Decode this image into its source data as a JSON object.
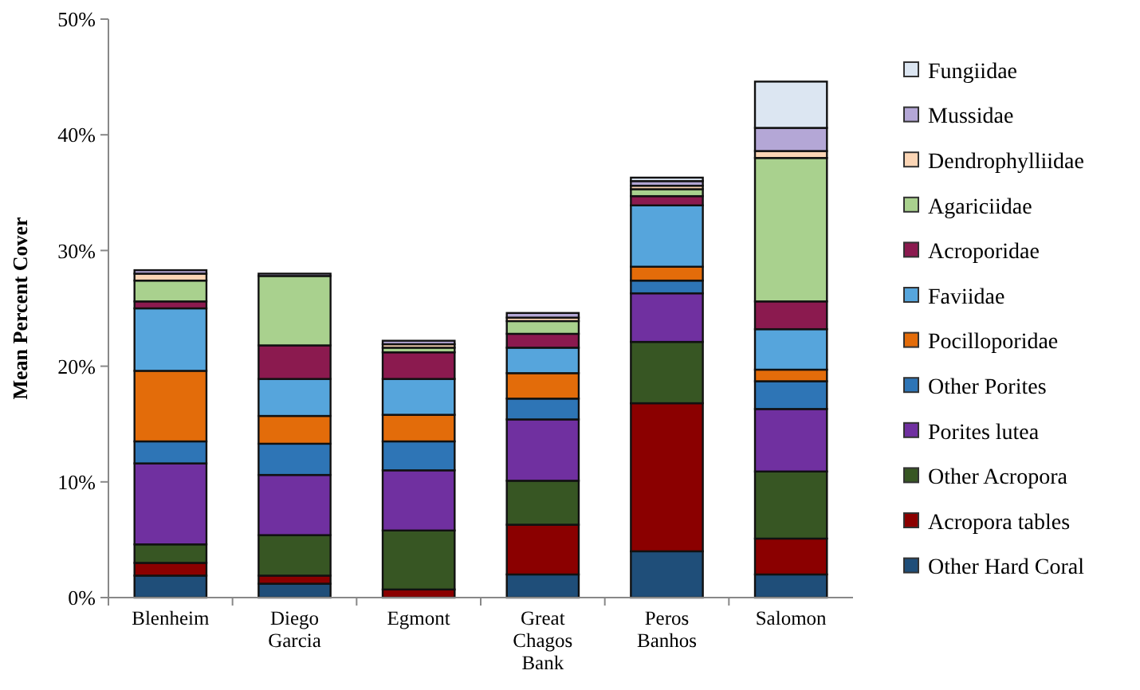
{
  "chart_data": {
    "type": "bar",
    "stacked": true,
    "ylabel": "Mean Percent Cover",
    "categories": [
      "Blenheim",
      "Diego Garcia",
      "Egmont",
      "Great Chagos Bank",
      "Peros Banhos",
      "Salomon"
    ],
    "ylim": [
      0,
      50
    ],
    "yticks": [
      {
        "value": 0,
        "label": "0%"
      },
      {
        "value": 10,
        "label": "10%"
      },
      {
        "value": 20,
        "label": "20%"
      },
      {
        "value": 30,
        "label": "30%"
      },
      {
        "value": 40,
        "label": "40%"
      },
      {
        "value": 50,
        "label": "50%"
      }
    ],
    "grid": false,
    "legend": "right",
    "series": [
      {
        "name": "Other Hard Coral",
        "color": "#1f4e79",
        "values": [
          1.9,
          1.2,
          0,
          2.0,
          4.0,
          2.0
        ]
      },
      {
        "name": "Acropora tables",
        "color": "#8b0000",
        "values": [
          1.1,
          0.7,
          0.7,
          4.3,
          12.8,
          3.1
        ]
      },
      {
        "name": "Other Acropora",
        "color": "#375623",
        "values": [
          1.6,
          3.5,
          5.1,
          3.8,
          5.3,
          5.8
        ]
      },
      {
        "name": "Porites lutea",
        "color": "#7030a0",
        "values": [
          7.0,
          5.2,
          5.2,
          5.3,
          4.2,
          5.4
        ]
      },
      {
        "name": "Other Porites",
        "color": "#2e75b6",
        "values": [
          1.9,
          2.7,
          2.5,
          1.8,
          1.1,
          2.4
        ]
      },
      {
        "name": "Pocilloporidae",
        "color": "#e36c0a",
        "values": [
          6.1,
          2.4,
          2.3,
          2.2,
          1.2,
          1.0
        ]
      },
      {
        "name": "Faviidae",
        "color": "#56a5dc",
        "values": [
          5.4,
          3.2,
          3.1,
          2.2,
          5.3,
          3.5
        ]
      },
      {
        "name": "Acroporidae",
        "color": "#8b1a4f",
        "values": [
          0.6,
          2.9,
          2.3,
          1.2,
          0.8,
          2.4
        ]
      },
      {
        "name": "Agariciidae",
        "color": "#a9d18e",
        "values": [
          1.8,
          6.0,
          0.4,
          1.1,
          0.6,
          12.4
        ]
      },
      {
        "name": "Dendrophylliidae",
        "color": "#fbd5b5",
        "values": [
          0.6,
          0,
          0.3,
          0.3,
          0.3,
          0.6
        ]
      },
      {
        "name": "Mussidae",
        "color": "#b4a7d6",
        "values": [
          0.3,
          0.2,
          0.3,
          0.4,
          0.4,
          2.0
        ]
      },
      {
        "name": "Fungiidae",
        "color": "#dce6f2",
        "values": [
          0,
          0,
          0,
          0,
          0.3,
          4.0
        ]
      }
    ]
  }
}
